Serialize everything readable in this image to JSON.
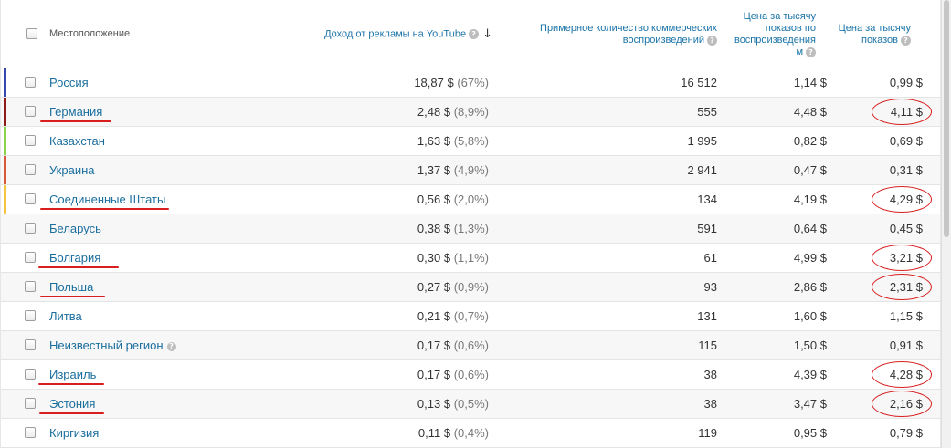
{
  "header": {
    "location_label": "Местоположение",
    "revenue_label": "Доход от рекламы на YouTube",
    "plays_label": "Примерное количество коммерческих воспроизведений",
    "cpm_play_label": "Цена за тысячу показов по воспроизведения м",
    "cpm_label": "Цена за тысячу показов"
  },
  "rows": [
    {
      "name": "Россия",
      "revenue": "18,87 $",
      "share": "(67%)",
      "plays": "16 512",
      "cpm_play": "1,14 $",
      "cpm": "0,99 $",
      "color": "#3949ab"
    },
    {
      "name": "Германия",
      "revenue": "2,48 $",
      "share": "(8,9%)",
      "plays": "555",
      "cpm_play": "4,48 $",
      "cpm": "4,11 $",
      "color": "#8e1b1b"
    },
    {
      "name": "Казахстан",
      "revenue": "1,63 $",
      "share": "(5,8%)",
      "plays": "1 995",
      "cpm_play": "0,82 $",
      "cpm": "0,69 $",
      "color": "#8bd34a"
    },
    {
      "name": "Украина",
      "revenue": "1,37 $",
      "share": "(4,9%)",
      "plays": "2 941",
      "cpm_play": "0,47 $",
      "cpm": "0,31 $",
      "color": "#d9573b"
    },
    {
      "name": "Соединенные Штаты",
      "revenue": "0,56 $",
      "share": "(2,0%)",
      "plays": "134",
      "cpm_play": "4,19 $",
      "cpm": "4,29 $",
      "color": "#f5c542"
    },
    {
      "name": "Беларусь",
      "revenue": "0,38 $",
      "share": "(1,3%)",
      "plays": "591",
      "cpm_play": "0,64 $",
      "cpm": "0,45 $"
    },
    {
      "name": "Болгария",
      "revenue": "0,30 $",
      "share": "(1,1%)",
      "plays": "61",
      "cpm_play": "4,99 $",
      "cpm": "3,21 $"
    },
    {
      "name": "Польша",
      "revenue": "0,27 $",
      "share": "(0,9%)",
      "plays": "93",
      "cpm_play": "2,86 $",
      "cpm": "2,31 $"
    },
    {
      "name": "Литва",
      "revenue": "0,21 $",
      "share": "(0,7%)",
      "plays": "131",
      "cpm_play": "1,60 $",
      "cpm": "1,15 $"
    },
    {
      "name": "Неизвестный регион",
      "revenue": "0,17 $",
      "share": "(0,6%)",
      "plays": "115",
      "cpm_play": "1,50 $",
      "cpm": "0,91 $",
      "help": true
    },
    {
      "name": "Израиль",
      "revenue": "0,17 $",
      "share": "(0,6%)",
      "plays": "38",
      "cpm_play": "4,39 $",
      "cpm": "4,28 $"
    },
    {
      "name": "Эстония",
      "revenue": "0,13 $",
      "share": "(0,5%)",
      "plays": "38",
      "cpm_play": "3,47 $",
      "cpm": "2,16 $"
    },
    {
      "name": "Киргизия",
      "revenue": "0,11 $",
      "share": "(0,4%)",
      "plays": "119",
      "cpm_play": "0,95 $",
      "cpm": "0,79 $"
    }
  ],
  "colors": {
    "link": "#1a6e9e",
    "header_link": "#1a73a8",
    "annotation": "#d81e1e"
  }
}
